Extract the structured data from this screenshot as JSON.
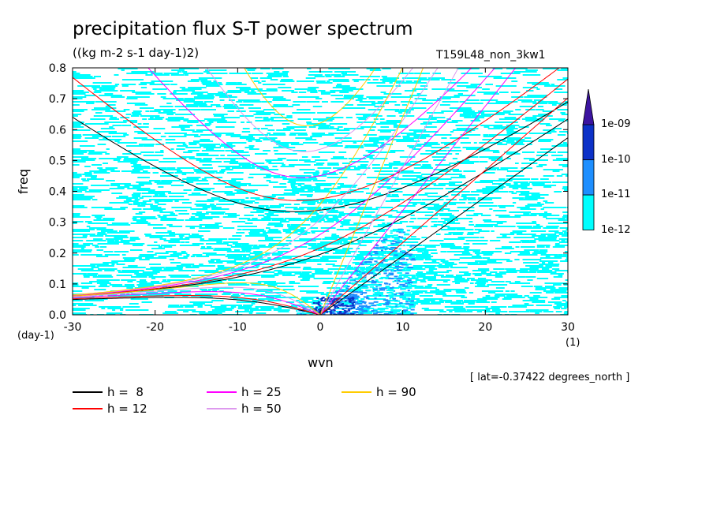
{
  "chart_data": {
    "type": "heatmap",
    "title": "precipitation flux S-T power spectrum",
    "subtitle": "((kg m-2 s-1 day-1)2)",
    "run_label": "T159L48_non_3kw1",
    "xlabel": "wvn",
    "ylabel": "freq",
    "x_unit_left": "(day-1)",
    "x_unit_right": "(1)",
    "annotation": "[ lat=-0.37422 degrees_north ]",
    "xlim": [
      -30,
      30
    ],
    "ylim": [
      0,
      0.8
    ],
    "x_ticks": [
      -30,
      -20,
      -10,
      0,
      10,
      20,
      30
    ],
    "x_tick_labels": [
      "-30",
      "-20",
      "-10",
      "0",
      "10",
      "20",
      "30"
    ],
    "y_ticks": [
      0.0,
      0.1,
      0.2,
      0.3,
      0.4,
      0.5,
      0.6,
      0.7,
      0.8
    ],
    "y_tick_labels": [
      "0.0",
      "0.1",
      "0.2",
      "0.3",
      "0.4",
      "0.5",
      "0.6",
      "0.7",
      "0.8"
    ],
    "colorbar": {
      "levels": [
        "1e-12",
        "1e-11",
        "1e-10",
        "1e-09"
      ],
      "colors": [
        "#00ffff",
        "#1e8fff",
        "#0d32c8",
        "#3c14a0"
      ]
    },
    "dispersion_curves": [
      {
        "label": "h =  8",
        "h": 8,
        "color": "#000000"
      },
      {
        "label": "h = 12",
        "h": 12,
        "color": "#ff0000"
      },
      {
        "label": "h = 25",
        "h": 25,
        "color": "#ff00ff"
      },
      {
        "label": "h = 50",
        "h": 50,
        "color": "#dd99ee"
      },
      {
        "label": "h = 90",
        "h": 90,
        "color": "#ffcc00"
      }
    ]
  }
}
